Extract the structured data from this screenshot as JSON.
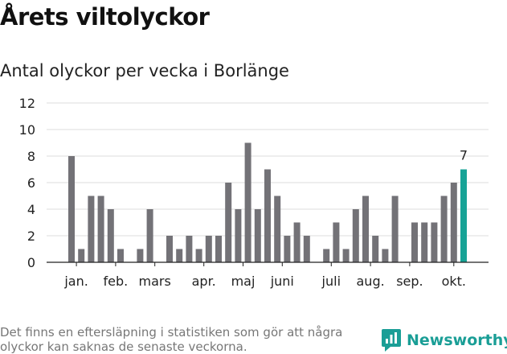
{
  "header": {
    "title": "Årets viltolyckor",
    "subtitle": "Antal olyckor per vecka i Borlänge"
  },
  "footer": {
    "note": "Det finns en eftersläpning i statistiken som gör att några olyckor kan saknas de senaste veckorna.",
    "brand": "Newsworthy"
  },
  "colors": {
    "bar": "#737277",
    "highlight": "#17a396",
    "grid": "#dddddd",
    "text": "#222222",
    "brand": "#1a9e96"
  },
  "chart_data": {
    "type": "bar",
    "title": "Antal olyckor per vecka i Borlänge",
    "weeks": [
      1,
      2,
      3,
      4,
      5,
      6,
      7,
      8,
      9,
      10,
      11,
      12,
      13,
      14,
      15,
      16,
      17,
      18,
      19,
      20,
      21,
      22,
      23,
      24,
      25,
      26,
      27,
      28,
      29,
      30,
      31,
      32,
      33,
      34,
      35,
      36,
      37,
      38,
      39,
      40,
      41
    ],
    "values": [
      8,
      1,
      5,
      5,
      4,
      1,
      0,
      1,
      4,
      0,
      2,
      1,
      2,
      1,
      2,
      2,
      6,
      4,
      9,
      4,
      7,
      5,
      2,
      3,
      2,
      0,
      1,
      3,
      1,
      4,
      5,
      2,
      1,
      5,
      0,
      3,
      3,
      3,
      5,
      6,
      7
    ],
    "highlight_index": 40,
    "highlight_label": "7",
    "ylim": [
      0,
      12
    ],
    "yticks": [
      "0",
      "2",
      "4",
      "6",
      "8",
      "10",
      "12"
    ],
    "month_labels": [
      {
        "label": "jan.",
        "week": 1.5
      },
      {
        "label": "feb.",
        "week": 5.5
      },
      {
        "label": "mars",
        "week": 9.5
      },
      {
        "label": "apr.",
        "week": 14.5
      },
      {
        "label": "maj",
        "week": 18.5
      },
      {
        "label": "juni",
        "week": 22.5
      },
      {
        "label": "juli",
        "week": 27.5
      },
      {
        "label": "aug.",
        "week": 31.5
      },
      {
        "label": "sep.",
        "week": 35.5
      },
      {
        "label": "okt.",
        "week": 40
      }
    ],
    "grid": true
  }
}
